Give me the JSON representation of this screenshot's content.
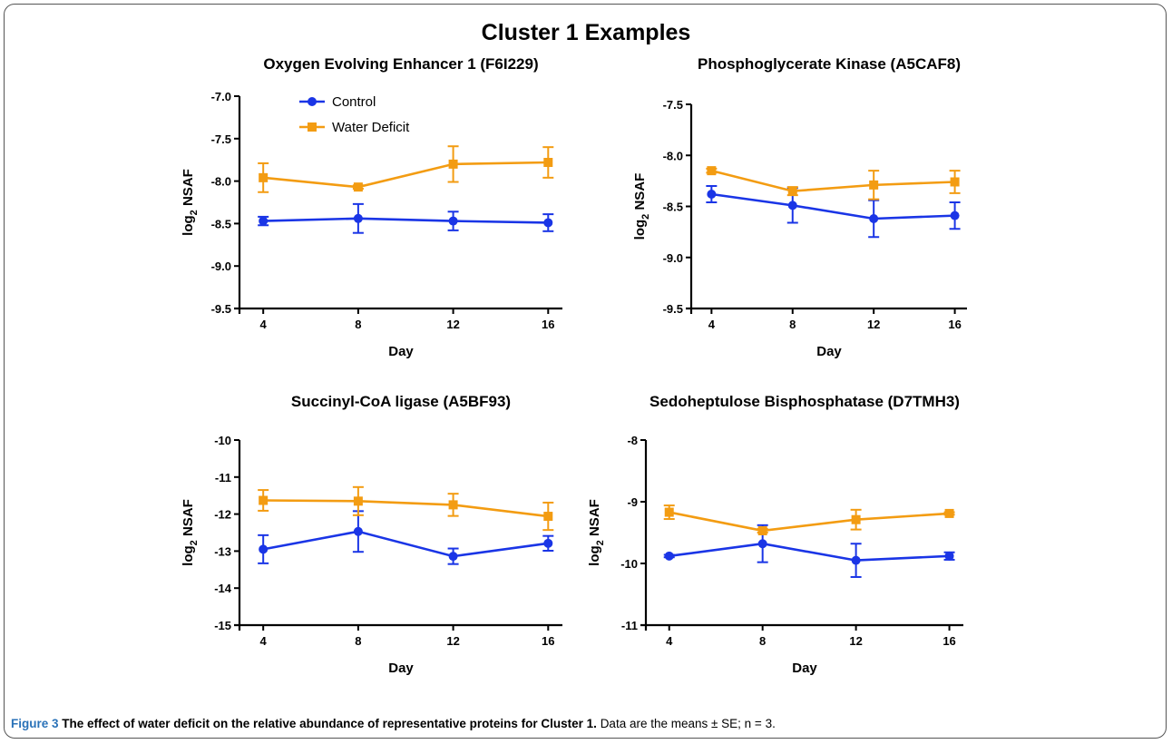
{
  "figure": {
    "title": "Cluster 1 Examples",
    "caption_label": "Figure 3",
    "caption_title": "The effect of water deficit on the relative abundance of representative proteins for Cluster 1.",
    "caption_text": "Data are the means ± SE; n = 3."
  },
  "colors": {
    "control": "#1a35e6",
    "water_deficit": "#f39c12"
  },
  "legend": [
    {
      "name": "Control",
      "marker": "circle",
      "color": "#1a35e6"
    },
    {
      "name": "Water Deficit",
      "marker": "square",
      "color": "#f39c12"
    }
  ],
  "chart_data": [
    {
      "type": "line",
      "title": "Oxygen Evolving Enhancer 1 (F6I229)",
      "xlabel": "Day",
      "ylabel": "log2 NSAF",
      "x": [
        4,
        8,
        12,
        16
      ],
      "xlim": [
        3,
        16.6
      ],
      "ylim": [
        -9.5,
        -7.0
      ],
      "yticks": [
        -7.0,
        -7.5,
        -8.0,
        -8.5,
        -9.0,
        -9.5
      ],
      "ytick_decimals": 1,
      "legend": true,
      "series": [
        {
          "name": "Control",
          "values": [
            -8.47,
            -8.44,
            -8.47,
            -8.49
          ],
          "errors": [
            0.05,
            0.17,
            0.11,
            0.1
          ]
        },
        {
          "name": "Water Deficit",
          "values": [
            -7.96,
            -8.07,
            -7.8,
            -7.78
          ],
          "errors": [
            0.17,
            0.02,
            0.21,
            0.18
          ]
        }
      ]
    },
    {
      "type": "line",
      "title": "Phosphoglycerate Kinase (A5CAF8)",
      "xlabel": "Day",
      "ylabel": "log2 NSAF",
      "x": [
        4,
        8,
        12,
        16
      ],
      "xlim": [
        3,
        16.6
      ],
      "ylim": [
        -9.5,
        -7.5
      ],
      "yticks": [
        -7.5,
        -8.0,
        -8.5,
        -9.0,
        -9.5
      ],
      "ytick_decimals": 1,
      "legend": false,
      "series": [
        {
          "name": "Control",
          "values": [
            -8.38,
            -8.49,
            -8.62,
            -8.59
          ],
          "errors": [
            0.08,
            0.17,
            0.18,
            0.13
          ]
        },
        {
          "name": "Water Deficit",
          "values": [
            -8.15,
            -8.35,
            -8.29,
            -8.26
          ],
          "errors": [
            0.02,
            0.04,
            0.14,
            0.11
          ]
        }
      ]
    },
    {
      "type": "line",
      "title": "Succinyl-CoA ligase (A5BF93)",
      "xlabel": "Day",
      "ylabel": "log2 NSAF",
      "x": [
        4,
        8,
        12,
        16
      ],
      "xlim": [
        3,
        16.6
      ],
      "ylim": [
        -15,
        -10
      ],
      "yticks": [
        -10,
        -11,
        -12,
        -13,
        -14,
        -15
      ],
      "ytick_decimals": 0,
      "legend": false,
      "series": [
        {
          "name": "Control",
          "values": [
            -12.95,
            -12.47,
            -13.14,
            -12.79
          ],
          "errors": [
            0.38,
            0.55,
            0.21,
            0.2
          ]
        },
        {
          "name": "Water Deficit",
          "values": [
            -11.63,
            -11.65,
            -11.75,
            -12.06
          ],
          "errors": [
            0.28,
            0.38,
            0.3,
            0.37
          ]
        }
      ]
    },
    {
      "type": "line",
      "title": "Sedoheptulose Bisphosphatase (D7TMH3)",
      "xlabel": "Day",
      "ylabel": "log2 NSAF",
      "x": [
        4,
        8,
        12,
        16
      ],
      "xlim": [
        3,
        16.6
      ],
      "ylim": [
        -11,
        -8
      ],
      "yticks": [
        -8,
        -9,
        -10,
        -11
      ],
      "ytick_decimals": 0,
      "legend": false,
      "series": [
        {
          "name": "Control",
          "values": [
            -9.88,
            -9.68,
            -9.95,
            -9.88
          ],
          "errors": [
            0.02,
            0.3,
            0.27,
            0.06
          ]
        },
        {
          "name": "Water Deficit",
          "values": [
            -9.17,
            -9.47,
            -9.29,
            -9.19
          ],
          "errors": [
            0.11,
            0.03,
            0.16,
            0.02
          ]
        }
      ]
    }
  ]
}
